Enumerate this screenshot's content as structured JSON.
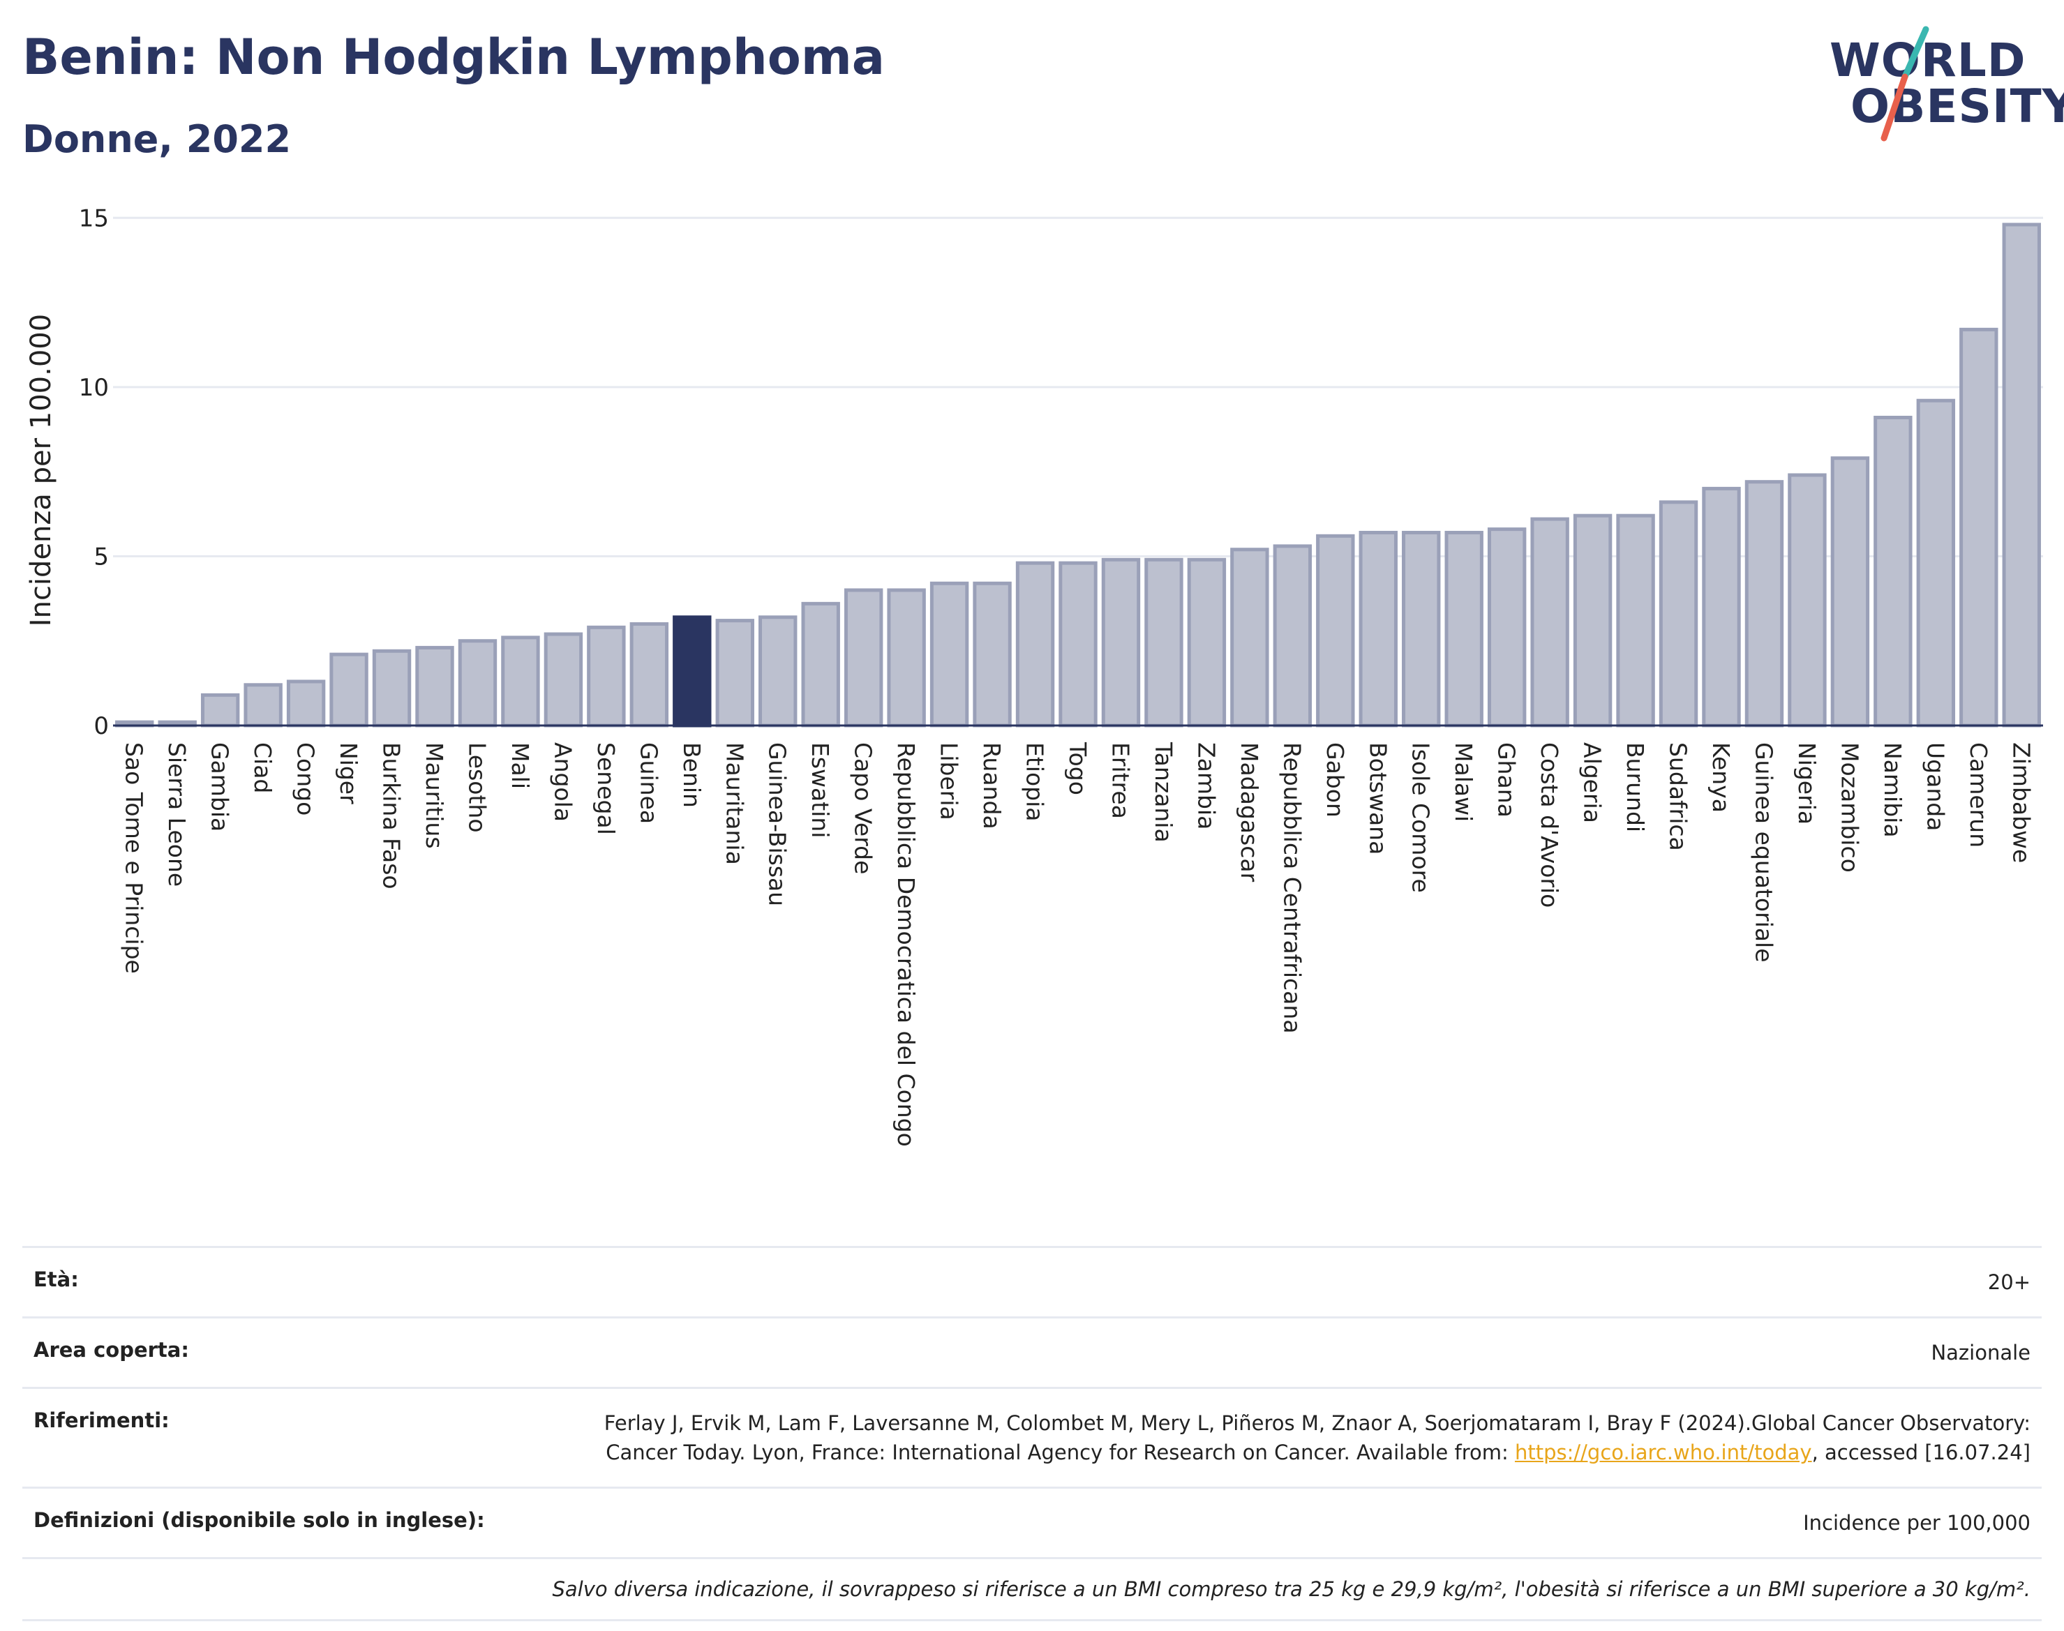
{
  "header": {
    "title": "Benin: Non Hodgkin Lymphoma",
    "subtitle": "Donne, 2022"
  },
  "logo": {
    "line1": "WORLD",
    "line2": "OBESITY",
    "slash_colors": [
      "#e8604c",
      "#3ab7b0"
    ]
  },
  "chart_data": {
    "type": "bar",
    "title": "Benin: Non Hodgkin Lymphoma",
    "subtitle": "Donne, 2022",
    "xlabel": "",
    "ylabel": "Incidenza per 100.000",
    "ylim": [
      0,
      15.5
    ],
    "yticks": [
      0,
      5,
      10,
      15
    ],
    "grid": true,
    "highlight": "Benin",
    "colors": {
      "bar": "#bcc0cf",
      "bar_border": "#9aa0b8",
      "highlight": "#2a3561",
      "grid": "#e6e9f0",
      "axis": "#2a3561"
    },
    "categories": [
      "Sao Tome e Principe",
      "Sierra Leone",
      "Gambia",
      "Ciad",
      "Congo",
      "Niger",
      "Burkina Faso",
      "Mauritius",
      "Lesotho",
      "Mali",
      "Angola",
      "Senegal",
      "Guinea",
      "Benin",
      "Mauritania",
      "Guinea-Bissau",
      "Eswatini",
      "Capo Verde",
      "Repubblica Democratica del Congo",
      "Liberia",
      "Ruanda",
      "Etiopia",
      "Togo",
      "Eritrea",
      "Tanzania",
      "Zambia",
      "Madagascar",
      "Repubblica Centrafricana",
      "Gabon",
      "Botswana",
      "Isole Comore",
      "Malawi",
      "Ghana",
      "Costa d'Avorio",
      "Algeria",
      "Burundi",
      "Sudafrica",
      "Kenya",
      "Guinea equatoriale",
      "Nigeria",
      "Mozambico",
      "Namibia",
      "Uganda",
      "Camerun",
      "Zimbabwe"
    ],
    "values": [
      0.1,
      0.1,
      0.9,
      1.2,
      1.3,
      2.1,
      2.2,
      2.3,
      2.5,
      2.6,
      2.7,
      2.9,
      3.0,
      3.2,
      3.1,
      3.2,
      3.6,
      4.0,
      4.0,
      4.2,
      4.2,
      4.8,
      4.8,
      4.9,
      4.9,
      4.9,
      5.2,
      5.3,
      5.6,
      5.7,
      5.7,
      5.7,
      5.8,
      6.1,
      6.2,
      6.2,
      6.6,
      7.0,
      7.2,
      7.4,
      7.9,
      9.1,
      9.6,
      11.7,
      14.8
    ]
  },
  "meta": {
    "age_label": "Età:",
    "age_value": "20+",
    "area_label": "Area coperta:",
    "area_value": "Nazionale",
    "refs_label": "Riferimenti:",
    "refs_text": "Ferlay J, Ervik M, Lam F, Laversanne M, Colombet M, Mery L, Piñeros M, Znaor A, Soerjomataram I, Bray F (2024).Global Cancer Observatory: Cancer Today. Lyon, France: International Agency for Research on Cancer. Available from:",
    "refs_link": "https://gco.iarc.who.int/today",
    "refs_after": ", accessed [16.07.24]",
    "defs_label": "Definizioni (disponibile solo in inglese):",
    "defs_value": "Incidence per 100,000",
    "note": "Salvo diversa indicazione, il sovrappeso si riferisce a un BMI compreso tra 25 kg e 29,9 kg/m², l'obesità si riferisce a un BMI superiore a 30 kg/m²."
  }
}
